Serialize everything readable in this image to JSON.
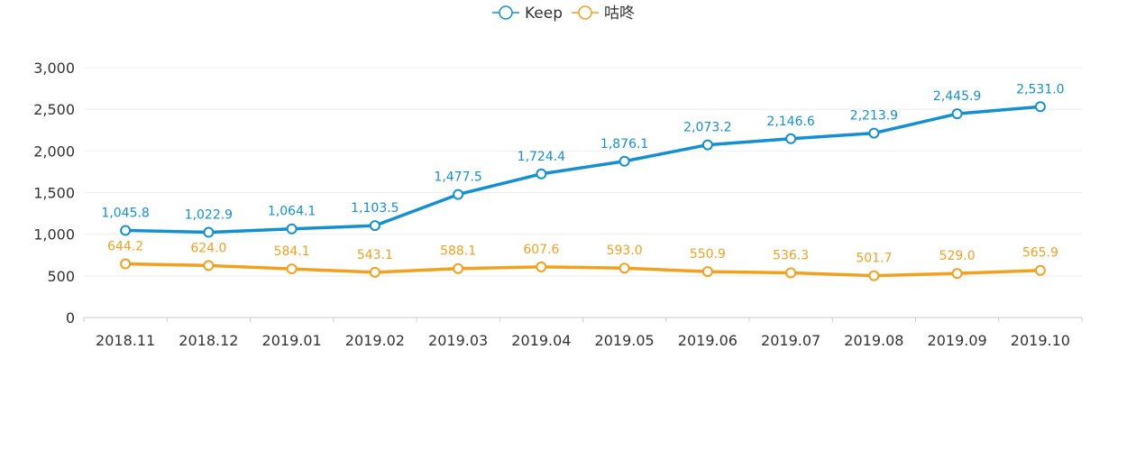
{
  "chart_data": {
    "type": "line",
    "title": "",
    "xlabel": "",
    "ylabel": "",
    "categories": [
      "2018.11",
      "2018.12",
      "2019.01",
      "2019.02",
      "2019.03",
      "2019.04",
      "2019.05",
      "2019.06",
      "2019.07",
      "2019.08",
      "2019.09",
      "2019.10"
    ],
    "ylim": [
      0,
      3000
    ],
    "yticks": [
      0,
      500,
      1000,
      1500,
      2000,
      2500,
      3000
    ],
    "ytick_labels": [
      "0",
      "500",
      "1,000",
      "1,500",
      "2,000",
      "2,500",
      "3,000"
    ],
    "grid": true,
    "legend_position": "top-center",
    "series": [
      {
        "name": "Keep",
        "color": "#1490d1",
        "values": [
          1045.8,
          1022.9,
          1064.1,
          1103.5,
          1477.5,
          1724.4,
          1876.1,
          2073.2,
          2146.6,
          2213.9,
          2445.9,
          2531.0
        ],
        "labels": [
          "1,045.8",
          "1,022.9",
          "1,064.1",
          "1,103.5",
          "1,477.5",
          "1,724.4",
          "1,876.1",
          "2,073.2",
          "2,146.6",
          "2,213.9",
          "2,445.9",
          "2,531.0"
        ]
      },
      {
        "name": "咕咚",
        "color": "#f2a11f",
        "values": [
          644.2,
          624.0,
          584.1,
          543.1,
          588.1,
          607.6,
          593.0,
          550.9,
          536.3,
          501.7,
          529.0,
          565.9
        ],
        "labels": [
          "644.2",
          "624.0",
          "584.1",
          "543.1",
          "588.1",
          "607.6",
          "593.0",
          "550.9",
          "536.3",
          "501.7",
          "529.0",
          "565.9"
        ]
      }
    ]
  }
}
